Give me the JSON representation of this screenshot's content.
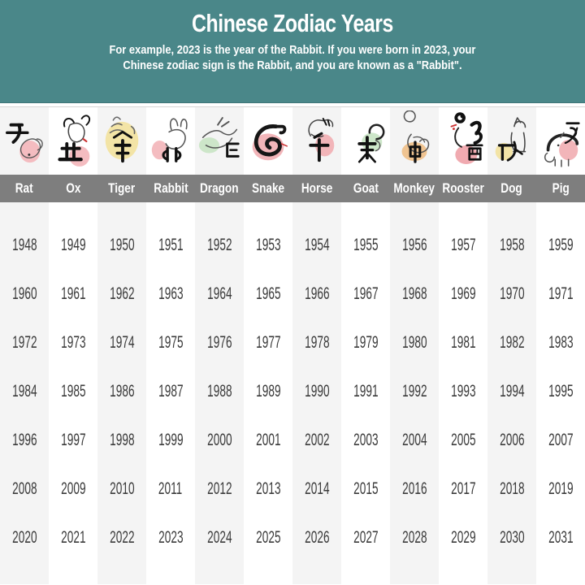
{
  "header": {
    "title": "Chinese Zodiac Years",
    "subtitle_line1": "For example, 2023 is the year of the Rabbit. If you were born in 2023, your",
    "subtitle_line2": "Chinese zodiac sign is the Rabbit, and you are known as a \"Rabbit\"."
  },
  "colors": {
    "header_bg": "#4a8789",
    "name_bar_bg": "#7e7e7e",
    "stripe": "#f4f4f4",
    "year_text": "#3b3b3b",
    "text_on_dark": "#ffffff"
  },
  "zodiac": {
    "animals": [
      {
        "name": "Rat",
        "character": "子",
        "icon": "rat-icon",
        "blob_color": "#f4bcc0"
      },
      {
        "name": "Ox",
        "character": "丑",
        "icon": "ox-icon",
        "blob_color": "#f4bcc0"
      },
      {
        "name": "Tiger",
        "character": "寅",
        "icon": "tiger-icon",
        "blob_color": "#f3e4a6"
      },
      {
        "name": "Rabbit",
        "character": "卯",
        "icon": "rabbit-icon",
        "blob_color": "#f4bcc0"
      },
      {
        "name": "Dragon",
        "character": "辰",
        "icon": "dragon-icon",
        "blob_color": "#cde6c9"
      },
      {
        "name": "Snake",
        "character": "巳",
        "icon": "snake-icon",
        "blob_color": "#f2b5b9"
      },
      {
        "name": "Horse",
        "character": "午",
        "icon": "horse-icon",
        "blob_color": "#f2b5b9"
      },
      {
        "name": "Goat",
        "character": "未",
        "icon": "goat-icon",
        "blob_color": "#cde6c9"
      },
      {
        "name": "Monkey",
        "character": "申",
        "icon": "monkey-icon",
        "blob_color": "#f0c491"
      },
      {
        "name": "Rooster",
        "character": "酉",
        "icon": "rooster-icon",
        "blob_color": "#f0aab0"
      },
      {
        "name": "Dog",
        "character": "戌",
        "icon": "dog-icon",
        "blob_color": "#f3e4a6"
      },
      {
        "name": "Pig",
        "character": "亥",
        "icon": "pig-icon",
        "blob_color": "#f2b5b9"
      }
    ]
  },
  "chart_data": {
    "type": "table",
    "title": "Chinese Zodiac Years",
    "columns": [
      "Rat",
      "Ox",
      "Tiger",
      "Rabbit",
      "Dragon",
      "Snake",
      "Horse",
      "Goat",
      "Monkey",
      "Rooster",
      "Dog",
      "Pig"
    ],
    "rows": [
      [
        1948,
        1949,
        1950,
        1951,
        1952,
        1953,
        1954,
        1955,
        1956,
        1957,
        1958,
        1959
      ],
      [
        1960,
        1961,
        1962,
        1963,
        1964,
        1965,
        1966,
        1967,
        1968,
        1969,
        1970,
        1971
      ],
      [
        1972,
        1973,
        1974,
        1975,
        1976,
        1977,
        1978,
        1979,
        1980,
        1981,
        1982,
        1983
      ],
      [
        1984,
        1985,
        1986,
        1987,
        1988,
        1989,
        1990,
        1991,
        1992,
        1993,
        1994,
        1995
      ],
      [
        1996,
        1997,
        1998,
        1999,
        2000,
        2001,
        2002,
        2003,
        2004,
        2005,
        2006,
        2007
      ],
      [
        2008,
        2009,
        2010,
        2011,
        2012,
        2013,
        2014,
        2015,
        2016,
        2017,
        2018,
        2019
      ],
      [
        2020,
        2021,
        2022,
        2023,
        2024,
        2025,
        2026,
        2027,
        2028,
        2029,
        2030,
        2031
      ]
    ]
  }
}
